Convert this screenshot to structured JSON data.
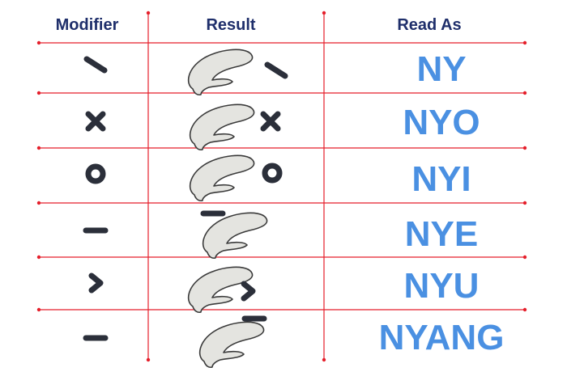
{
  "colors": {
    "header_text": "#1f2f6b",
    "read_as_text": "#4a90e2",
    "grid_line": "#e51f2b",
    "mark": "#2b2f3a",
    "base_fill": "#e4e4e0",
    "base_stroke": "#3a3a3a"
  },
  "headers": {
    "modifier": "Modifier",
    "result": "Result",
    "read_as": "Read As"
  },
  "rows": [
    {
      "modifier_mark": "slash-stroke",
      "result_mark_position": "right",
      "read_as": "NY"
    },
    {
      "modifier_mark": "x-cross",
      "result_mark_position": "right",
      "read_as": "NYO"
    },
    {
      "modifier_mark": "circle",
      "result_mark_position": "right",
      "read_as": "NYI"
    },
    {
      "modifier_mark": "dash",
      "result_mark_position": "above-left",
      "read_as": "NYE"
    },
    {
      "modifier_mark": "chevron",
      "result_mark_position": "lower-right",
      "read_as": "NYU"
    },
    {
      "modifier_mark": "dash",
      "result_mark_position": "above-right",
      "read_as": "NYANG"
    }
  ]
}
